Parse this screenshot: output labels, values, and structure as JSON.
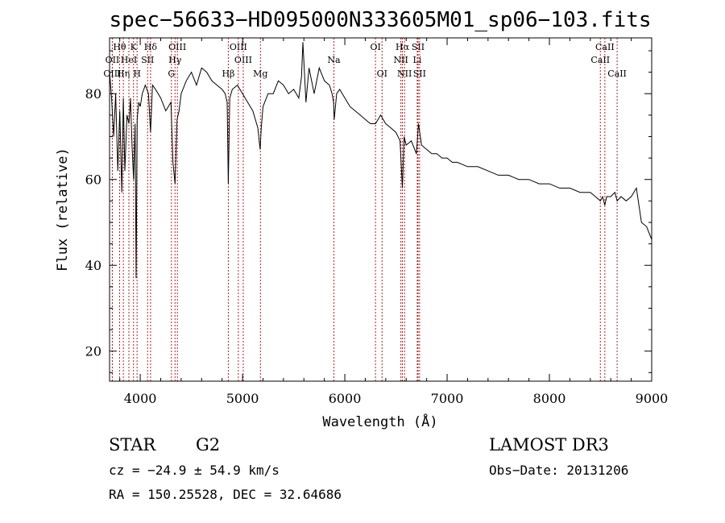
{
  "chart_data": {
    "type": "line",
    "title": "spec−56633−HD095000N333605M01_sp06−103.fits",
    "xlabel": "Wavelength (Å)",
    "ylabel": "Flux (relative)",
    "xlim": [
      3700,
      9000
    ],
    "ylim": [
      13,
      93
    ],
    "xticks": [
      4000,
      5000,
      6000,
      7000,
      8000,
      9000
    ],
    "yticks": [
      20,
      40,
      60,
      80
    ],
    "series": [
      {
        "name": "spectrum",
        "x": [
          3700,
          3720,
          3740,
          3760,
          3780,
          3800,
          3820,
          3835,
          3850,
          3870,
          3890,
          3905,
          3920,
          3935,
          3950,
          3960,
          3970,
          3985,
          4000,
          4020,
          4050,
          4080,
          4101,
          4120,
          4150,
          4200,
          4250,
          4300,
          4320,
          4340,
          4360,
          4380,
          4400,
          4450,
          4500,
          4550,
          4600,
          4650,
          4700,
          4750,
          4800,
          4830,
          4850,
          4861,
          4875,
          4900,
          4950,
          5000,
          5050,
          5100,
          5150,
          5172,
          5183,
          5200,
          5250,
          5300,
          5350,
          5400,
          5450,
          5500,
          5550,
          5577,
          5590,
          5620,
          5650,
          5700,
          5750,
          5800,
          5850,
          5875,
          5890,
          5896,
          5920,
          5950,
          6000,
          6050,
          6100,
          6150,
          6200,
          6250,
          6300,
          6350,
          6400,
          6450,
          6500,
          6540,
          6563,
          6580,
          6600,
          6650,
          6700,
          6720,
          6750,
          6800,
          6850,
          6900,
          6950,
          7000,
          7050,
          7100,
          7200,
          7300,
          7400,
          7500,
          7600,
          7700,
          7800,
          7900,
          8000,
          8100,
          8200,
          8300,
          8400,
          8450,
          8498,
          8520,
          8542,
          8560,
          8600,
          8640,
          8662,
          8700,
          8750,
          8800,
          8850,
          8900,
          8950,
          9000
        ],
        "values": [
          85,
          79,
          70,
          80,
          62,
          76,
          57,
          79,
          62,
          75,
          73,
          79,
          68,
          60,
          73,
          37,
          74,
          78,
          77,
          80,
          82,
          80,
          71,
          82,
          81,
          79,
          76,
          78,
          64,
          59,
          74,
          76,
          80,
          83,
          85,
          82,
          86,
          85,
          83,
          82,
          81,
          80,
          78,
          59,
          79,
          81,
          82,
          80,
          78,
          76,
          72,
          67,
          72,
          77,
          80,
          80,
          83,
          82,
          80,
          81,
          79,
          84,
          92,
          78,
          86,
          80,
          86,
          83,
          82,
          80,
          78,
          74,
          80,
          81,
          79,
          77,
          76,
          75,
          74,
          73,
          73,
          75,
          73,
          72,
          71,
          69,
          58,
          70,
          68,
          69,
          66,
          73,
          68,
          67,
          66,
          66,
          65,
          65,
          64,
          64,
          63,
          63,
          62,
          61,
          61,
          60,
          60,
          59,
          59,
          58,
          58,
          57,
          57,
          56,
          55,
          56,
          54,
          56,
          56,
          57,
          55,
          56,
          55,
          56,
          58,
          50,
          49,
          46
        ],
        "color": "#000000"
      }
    ],
    "lines": [
      {
        "label": "Hθ",
        "wave": 3798,
        "row": 1
      },
      {
        "label": "OII",
        "wave": 3727,
        "row": 2
      },
      {
        "label": "OIII",
        "wave": 3727,
        "row": 3
      },
      {
        "label": "K",
        "wave": 3934,
        "row": 1
      },
      {
        "label": "HeI",
        "wave": 3889,
        "row": 2
      },
      {
        "label": "Hη",
        "wave": 3835,
        "row": 3
      },
      {
        "label": "Hδ",
        "wave": 4101,
        "row": 1
      },
      {
        "label": "SII",
        "wave": 4072,
        "row": 2
      },
      {
        "label": "H",
        "wave": 3969,
        "row": 3
      },
      {
        "label": "OIII",
        "wave": 4363,
        "row": 1
      },
      {
        "label": "Hγ",
        "wave": 4340,
        "row": 2
      },
      {
        "label": "G",
        "wave": 4305,
        "row": 3
      },
      {
        "label": "OIII",
        "wave": 4959,
        "row": 1
      },
      {
        "label": "OIII",
        "wave": 5007,
        "row": 2
      },
      {
        "label": "Hβ",
        "wave": 4861,
        "row": 3
      },
      {
        "label": "Mg",
        "wave": 5175,
        "row": 3
      },
      {
        "label": "Na",
        "wave": 5893,
        "row": 2
      },
      {
        "label": "OI",
        "wave": 6300,
        "row": 1
      },
      {
        "label": "OI",
        "wave": 6364,
        "row": 3
      },
      {
        "label": "Hα",
        "wave": 6563,
        "row": 1
      },
      {
        "label": "SII",
        "wave": 6716,
        "row": 1
      },
      {
        "label": "NII",
        "wave": 6548,
        "row": 2
      },
      {
        "label": "Li",
        "wave": 6708,
        "row": 2
      },
      {
        "label": "NII",
        "wave": 6584,
        "row": 3
      },
      {
        "label": "SII",
        "wave": 6731,
        "row": 3
      },
      {
        "label": "CaII",
        "wave": 8542,
        "row": 1
      },
      {
        "label": "CaII",
        "wave": 8498,
        "row": 2
      },
      {
        "label": "CaII",
        "wave": 8662,
        "row": 3
      }
    ]
  },
  "info": {
    "class_label": "STAR",
    "subclass_label": "G2",
    "survey_label": "LAMOST DR3",
    "cz_text": "cz = −24.9 ± 54.9 km/s",
    "obs_date_text": "Obs−Date: 20131206",
    "radec_text": "RA = 150.25528, DEC =  32.64686"
  }
}
